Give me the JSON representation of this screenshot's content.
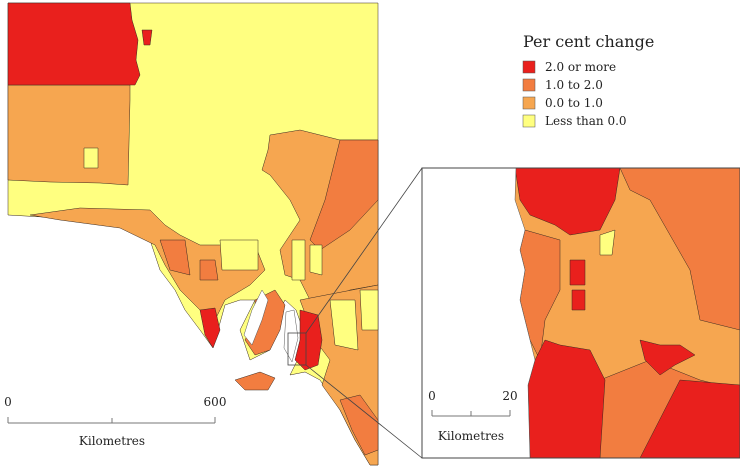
{
  "legend": {
    "title": "Per cent change",
    "items": [
      {
        "label": "2.0 or more",
        "color": "#e9201d"
      },
      {
        "label": "1.0 to 2.0",
        "color": "#f27d40"
      },
      {
        "label": "0.0 to 1.0",
        "color": "#f6a650"
      },
      {
        "label": "Less than 0.0",
        "color": "#ffff80"
      }
    ]
  },
  "scale_main": {
    "start": "0",
    "end": "600",
    "unit": "Kilometres"
  },
  "scale_inset": {
    "start": "0",
    "end": "20",
    "unit": "Kilometres"
  }
}
